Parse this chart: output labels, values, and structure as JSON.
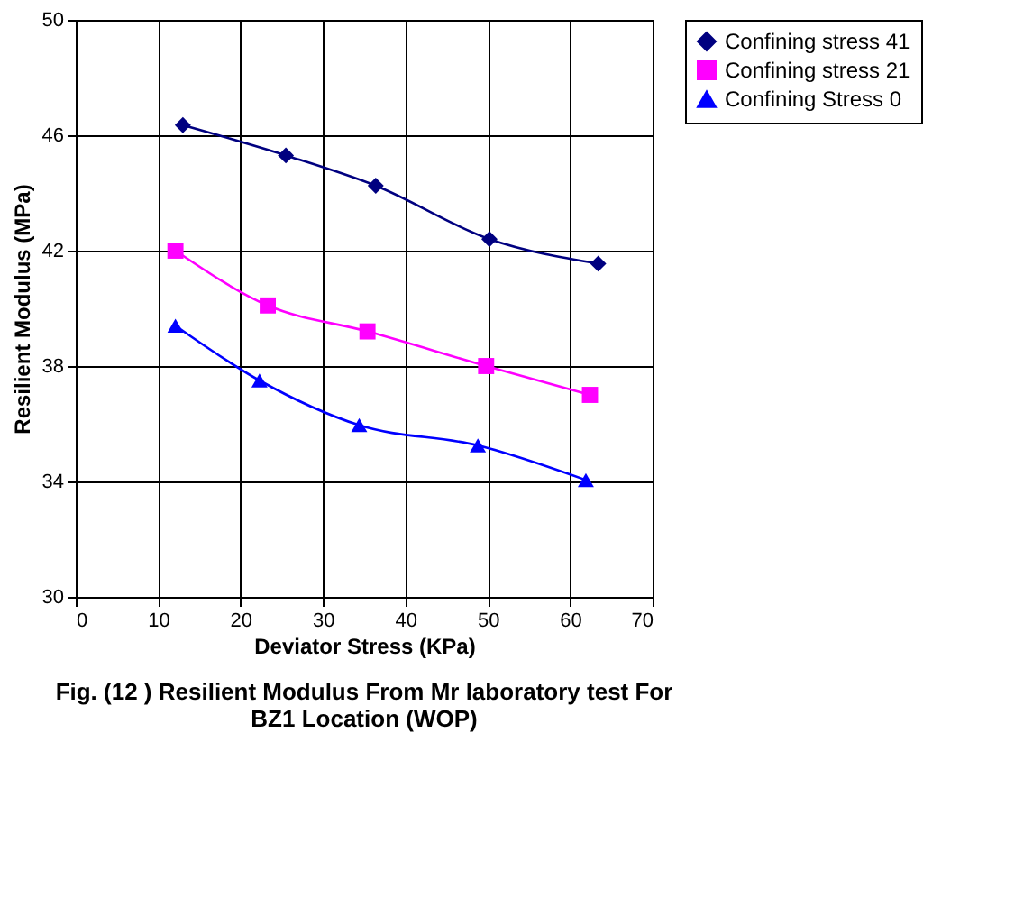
{
  "chart_data": {
    "type": "line",
    "title": "Fig. (12 )  Resilient Modulus From Mr laboratory test For  BZ1 Location (WOP)",
    "xlabel": "Deviator Stress (KPa)",
    "ylabel": "Resilient Modulus (MPa)",
    "xlim": [
      0,
      70
    ],
    "xticks": [
      0,
      10,
      20,
      30,
      40,
      50,
      60,
      70
    ],
    "ylim": [
      30,
      50
    ],
    "yticks": [
      30,
      34,
      38,
      42,
      46,
      50
    ],
    "grid": true,
    "legend": "right",
    "series": [
      {
        "name": "Confining stress 41",
        "color": "#000080",
        "marker": "diamond",
        "x": [
          13.0,
          25.5,
          36.4,
          50.2,
          63.4
        ],
        "values": [
          46.35,
          45.3,
          44.25,
          42.4,
          41.55
        ]
      },
      {
        "name": "Confining stress 21",
        "color": "#ff00ff",
        "marker": "square",
        "x": [
          12.1,
          23.3,
          35.4,
          49.8,
          62.4
        ],
        "values": [
          42.0,
          40.1,
          39.2,
          38.0,
          37.0
        ]
      },
      {
        "name": "Confining Stress 0",
        "color": "#0000ff",
        "marker": "triangle",
        "x": [
          12.1,
          22.3,
          34.4,
          48.8,
          61.9
        ],
        "values": [
          39.4,
          37.5,
          35.95,
          35.25,
          34.05
        ]
      }
    ]
  }
}
